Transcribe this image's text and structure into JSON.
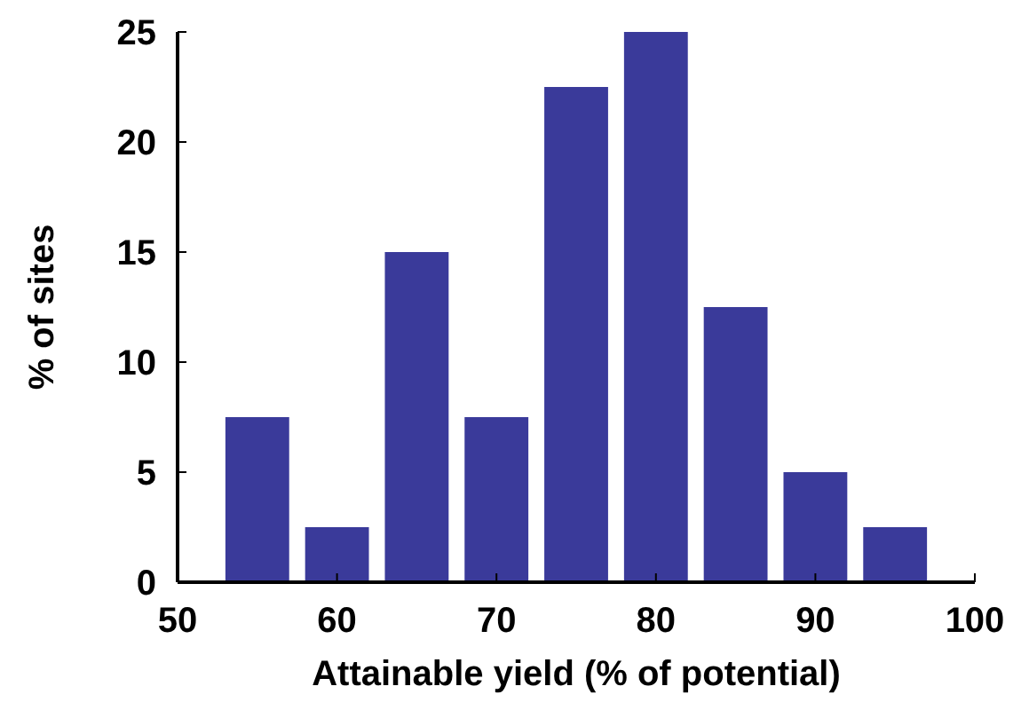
{
  "chart_data": {
    "type": "bar",
    "xlabel": "Attainable yield (% of potential)",
    "ylabel": "% of sites",
    "x": [
      55,
      60,
      65,
      70,
      75,
      80,
      85,
      90,
      95
    ],
    "values": [
      7.5,
      2.5,
      15,
      7.5,
      22.5,
      25,
      12.5,
      5,
      2.5
    ],
    "color": "#3a3a9a",
    "xlim": [
      50,
      100
    ],
    "xticks": [
      50,
      60,
      70,
      80,
      90,
      100
    ],
    "ylim": [
      0,
      25
    ],
    "yticks": [
      0,
      5,
      10,
      15,
      20,
      25
    ]
  }
}
